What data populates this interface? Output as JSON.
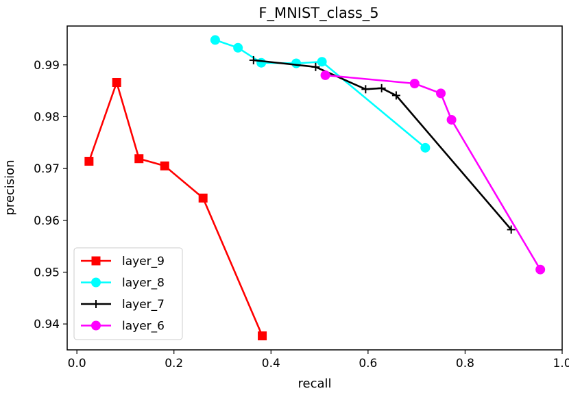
{
  "chart_data": {
    "type": "line",
    "title": "F_MNIST_class_5",
    "xlabel": "recall",
    "ylabel": "precision",
    "xlim": [
      -0.02,
      1.0
    ],
    "ylim": [
      0.935,
      0.9975
    ],
    "xticks": [
      0.0,
      0.2,
      0.4,
      0.6,
      0.8,
      1.0
    ],
    "xtick_labels": [
      "0.0",
      "0.2",
      "0.4",
      "0.6",
      "0.8",
      "1.0"
    ],
    "yticks": [
      0.94,
      0.95,
      0.96,
      0.97,
      0.98,
      0.99
    ],
    "ytick_labels": [
      "0.94",
      "0.95",
      "0.96",
      "0.97",
      "0.98",
      "0.99"
    ],
    "grid": false,
    "legend_position": "lower-left",
    "series": [
      {
        "name": "layer_9",
        "color": "#ff0000",
        "marker": "square",
        "x": [
          0.025,
          0.082,
          0.128,
          0.181,
          0.26,
          0.382
        ],
        "y": [
          0.9714,
          0.9866,
          0.9719,
          0.9705,
          0.9643,
          0.9377
        ]
      },
      {
        "name": "layer_8",
        "color": "#00ffff",
        "marker": "circle",
        "x": [
          0.285,
          0.332,
          0.38,
          0.452,
          0.505,
          0.718
        ],
        "y": [
          0.9948,
          0.9933,
          0.9904,
          0.9903,
          0.9906,
          0.974
        ]
      },
      {
        "name": "layer_7",
        "color": "#000000",
        "marker": "plus",
        "x": [
          0.364,
          0.492,
          0.595,
          0.628,
          0.658,
          0.895
        ],
        "y": [
          0.9909,
          0.9896,
          0.9853,
          0.9855,
          0.9841,
          0.9582
        ]
      },
      {
        "name": "layer_6",
        "color": "#ff00ff",
        "marker": "circle",
        "x": [
          0.512,
          0.696,
          0.75,
          0.772,
          0.955
        ],
        "y": [
          0.988,
          0.9864,
          0.9845,
          0.9794,
          0.9505
        ]
      }
    ]
  }
}
